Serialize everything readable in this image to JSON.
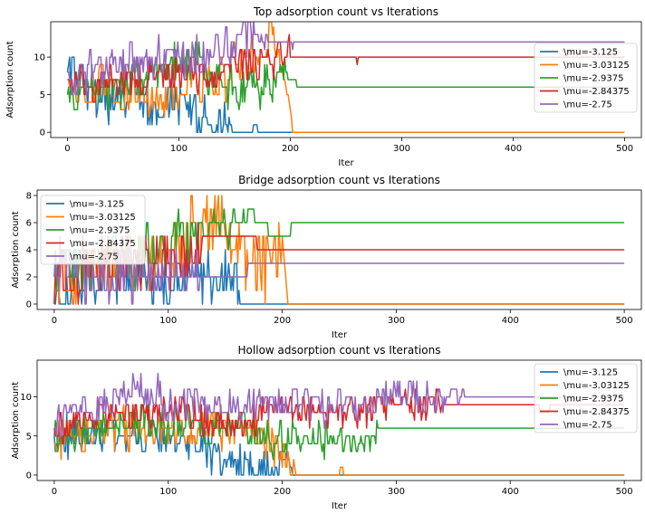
{
  "chart_data": [
    {
      "type": "line",
      "title": "Top adsorption count vs Iterations",
      "xlabel": "Iter",
      "ylabel": "Adsorption count",
      "xlim": [
        -15,
        515
      ],
      "ylim": [
        -0.7,
        14.7
      ],
      "xticks": [
        0,
        100,
        200,
        300,
        400,
        500
      ],
      "yticks": [
        0,
        5,
        10
      ],
      "legend_position": "right",
      "series": [
        {
          "name": "\\mu=-3.125",
          "color": "#1f77b4",
          "keypoints": [
            [
              0,
              8
            ],
            [
              20,
              6
            ],
            [
              40,
              4
            ],
            [
              60,
              6
            ],
            [
              80,
              3
            ],
            [
              100,
              4
            ],
            [
              120,
              2
            ],
            [
              140,
              1
            ],
            [
              150,
              0
            ],
            [
              165,
              0
            ],
            [
              168,
              1
            ],
            [
              172,
              0
            ],
            [
              500,
              0
            ]
          ],
          "noise": 2.5,
          "noise_end": 150,
          "final": 0
        },
        {
          "name": "\\mu=-3.03125",
          "color": "#ff7f0e",
          "keypoints": [
            [
              0,
              6
            ],
            [
              30,
              6
            ],
            [
              60,
              5
            ],
            [
              90,
              5
            ],
            [
              120,
              6
            ],
            [
              140,
              8
            ],
            [
              160,
              10
            ],
            [
              180,
              12
            ],
            [
              190,
              11
            ],
            [
              200,
              3
            ],
            [
              202,
              0
            ],
            [
              500,
              0
            ]
          ],
          "noise": 2.5,
          "noise_end": 195,
          "final": 0
        },
        {
          "name": "\\mu=-2.9375",
          "color": "#2ca02c",
          "keypoints": [
            [
              0,
              5
            ],
            [
              40,
              6
            ],
            [
              80,
              8
            ],
            [
              110,
              9
            ],
            [
              130,
              8
            ],
            [
              150,
              5
            ],
            [
              170,
              6
            ],
            [
              185,
              7
            ],
            [
              195,
              9
            ],
            [
              200,
              7
            ],
            [
              210,
              6
            ],
            [
              500,
              6
            ]
          ],
          "noise": 2.2,
          "noise_end": 200,
          "final": 6
        },
        {
          "name": "\\mu=-2.84375",
          "color": "#d62728",
          "keypoints": [
            [
              0,
              6
            ],
            [
              50,
              7
            ],
            [
              100,
              8
            ],
            [
              130,
              7
            ],
            [
              150,
              9
            ],
            [
              175,
              9
            ],
            [
              200,
              10
            ],
            [
              210,
              10
            ],
            [
              258,
              10
            ],
            [
              260,
              9
            ],
            [
              262,
              10
            ],
            [
              500,
              10
            ]
          ],
          "noise": 2.0,
          "noise_end": 200,
          "final": 10
        },
        {
          "name": "\\mu=-2.75",
          "color": "#9467bd",
          "keypoints": [
            [
              0,
              7
            ],
            [
              50,
              9
            ],
            [
              100,
              10
            ],
            [
              130,
              10
            ],
            [
              150,
              11
            ],
            [
              165,
              13
            ],
            [
              180,
              12
            ],
            [
              200,
              12
            ],
            [
              202,
              11
            ],
            [
              204,
              12
            ],
            [
              500,
              12
            ]
          ],
          "noise": 2.0,
          "noise_end": 180,
          "final": 12
        }
      ]
    },
    {
      "type": "line",
      "title": "Bridge adsorption count vs Iterations",
      "xlabel": "Iter",
      "ylabel": "Adsorption count",
      "xlim": [
        -15,
        515
      ],
      "ylim": [
        -0.4,
        8.4
      ],
      "xticks": [
        0,
        100,
        200,
        300,
        400,
        500
      ],
      "yticks": [
        0,
        2,
        4,
        6,
        8
      ],
      "legend_position": "top-left",
      "series": [
        {
          "name": "\\mu=-3.125",
          "color": "#1f77b4",
          "keypoints": [
            [
              0,
              0
            ],
            [
              20,
              2
            ],
            [
              60,
              2
            ],
            [
              100,
              1
            ],
            [
              130,
              2
            ],
            [
              150,
              2
            ],
            [
              160,
              1
            ],
            [
              165,
              0
            ],
            [
              500,
              0
            ]
          ],
          "noise": 1.8,
          "noise_end": 162,
          "final": 0
        },
        {
          "name": "\\mu=-3.03125",
          "color": "#ff7f0e",
          "keypoints": [
            [
              0,
              2
            ],
            [
              40,
              3
            ],
            [
              80,
              3
            ],
            [
              110,
              4
            ],
            [
              140,
              6
            ],
            [
              160,
              4
            ],
            [
              180,
              3
            ],
            [
              195,
              4
            ],
            [
              200,
              5
            ],
            [
              205,
              0
            ],
            [
              500,
              0
            ]
          ],
          "noise": 2.0,
          "noise_end": 200,
          "final": 0
        },
        {
          "name": "\\mu=-2.9375",
          "color": "#2ca02c",
          "keypoints": [
            [
              0,
              3
            ],
            [
              50,
              3
            ],
            [
              100,
              4
            ],
            [
              115,
              5
            ],
            [
              140,
              6
            ],
            [
              170,
              7
            ],
            [
              180,
              6
            ],
            [
              195,
              5
            ],
            [
              205,
              5
            ],
            [
              210,
              6
            ],
            [
              500,
              6
            ]
          ],
          "noise": 1.6,
          "noise_end": 170,
          "final": 6
        },
        {
          "name": "\\mu=-2.84375",
          "color": "#d62728",
          "keypoints": [
            [
              0,
              2
            ],
            [
              50,
              3
            ],
            [
              100,
              3
            ],
            [
              120,
              4
            ],
            [
              140,
              5
            ],
            [
              165,
              5
            ],
            [
              175,
              5
            ],
            [
              180,
              4
            ],
            [
              500,
              4
            ]
          ],
          "noise": 1.6,
          "noise_end": 130,
          "final": 4
        },
        {
          "name": "\\mu=-2.75",
          "color": "#9467bd",
          "keypoints": [
            [
              0,
              3
            ],
            [
              50,
              2
            ],
            [
              100,
              2
            ],
            [
              120,
              2
            ],
            [
              140,
              2
            ],
            [
              160,
              2
            ],
            [
              180,
              3
            ],
            [
              500,
              3
            ]
          ],
          "noise": 1.4,
          "noise_end": 130,
          "final": 3
        }
      ]
    },
    {
      "type": "line",
      "title": "Hollow adsorption count vs Iterations",
      "xlabel": "Iter",
      "ylabel": "Adsorption count",
      "xlim": [
        -15,
        515
      ],
      "ylim": [
        -0.7,
        14.7
      ],
      "xticks": [
        0,
        100,
        200,
        300,
        400,
        500
      ],
      "yticks": [
        0,
        5,
        10
      ],
      "legend_position": "right",
      "series": [
        {
          "name": "\\mu=-3.125",
          "color": "#1f77b4",
          "keypoints": [
            [
              0,
              5
            ],
            [
              50,
              5
            ],
            [
              100,
              5
            ],
            [
              130,
              4
            ],
            [
              150,
              2
            ],
            [
              170,
              1
            ],
            [
              190,
              0
            ],
            [
              205,
              2
            ],
            [
              210,
              0
            ],
            [
              500,
              0
            ]
          ],
          "noise": 2.0,
          "noise_end": 205,
          "final": 0
        },
        {
          "name": "\\mu=-3.03125",
          "color": "#ff7f0e",
          "keypoints": [
            [
              0,
              5
            ],
            [
              50,
              6
            ],
            [
              100,
              6
            ],
            [
              150,
              6
            ],
            [
              180,
              5
            ],
            [
              200,
              3
            ],
            [
              210,
              0
            ],
            [
              250,
              0
            ],
            [
              252,
              1
            ],
            [
              254,
              0
            ],
            [
              500,
              0
            ]
          ],
          "noise": 2.2,
          "noise_end": 212,
          "final": 0
        },
        {
          "name": "\\mu=-2.9375",
          "color": "#2ca02c",
          "keypoints": [
            [
              0,
              5
            ],
            [
              50,
              6
            ],
            [
              100,
              7
            ],
            [
              150,
              6
            ],
            [
              200,
              5
            ],
            [
              250,
              5
            ],
            [
              280,
              5
            ],
            [
              290,
              6
            ],
            [
              500,
              6
            ]
          ],
          "noise": 2.0,
          "noise_end": 285,
          "final": 6
        },
        {
          "name": "\\mu=-2.84375",
          "color": "#d62728",
          "keypoints": [
            [
              0,
              6
            ],
            [
              50,
              8
            ],
            [
              100,
              8
            ],
            [
              150,
              7
            ],
            [
              200,
              8
            ],
            [
              250,
              8
            ],
            [
              300,
              9
            ],
            [
              350,
              9
            ],
            [
              420,
              9
            ],
            [
              430,
              8
            ],
            [
              440,
              9
            ],
            [
              500,
              9
            ]
          ],
          "noise": 1.8,
          "noise_end": 340,
          "final": 9
        },
        {
          "name": "\\mu=-2.75",
          "color": "#9467bd",
          "keypoints": [
            [
              0,
              7
            ],
            [
              50,
              9
            ],
            [
              75,
              11
            ],
            [
              100,
              9
            ],
            [
              150,
              9
            ],
            [
              200,
              9
            ],
            [
              250,
              9
            ],
            [
              300,
              10
            ],
            [
              360,
              10
            ],
            [
              370,
              10
            ],
            [
              500,
              10
            ]
          ],
          "noise": 1.8,
          "noise_end": 360,
          "final": 10
        }
      ]
    }
  ]
}
